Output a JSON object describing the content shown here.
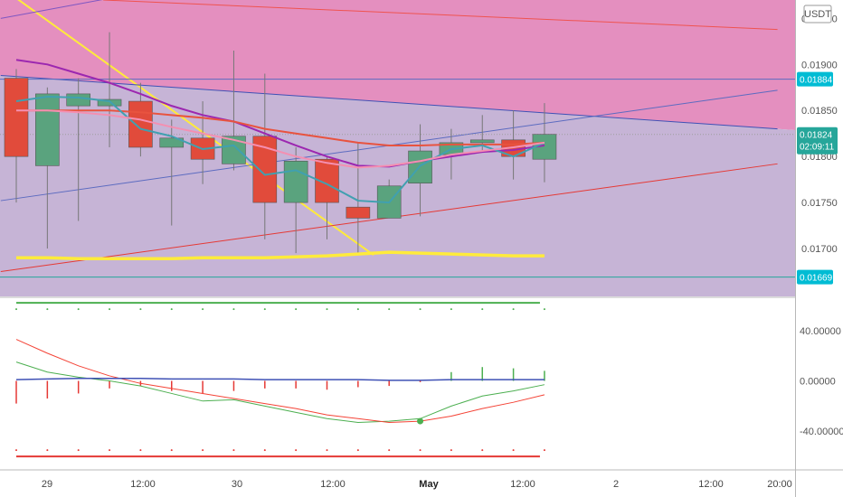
{
  "quote_currency": "USDT",
  "price_axis": {
    "ticks": [
      "0.01950",
      "0.01900",
      "0.01850",
      "0.01800",
      "0.01750",
      "0.01700"
    ],
    "ylim": [
      0.01648,
      0.0197
    ]
  },
  "oscillator_axis": {
    "ticks": [
      "40.00000",
      "0.00000",
      "-40.00000"
    ],
    "ylim": [
      -70,
      65
    ]
  },
  "time_axis": {
    "labels": [
      "29",
      "12:00",
      "30",
      "12:00",
      "May",
      "12:00",
      "2",
      "12:00",
      "20:00"
    ],
    "bold_label": "May"
  },
  "price_badges": {
    "upper_line": {
      "text": "0.01884",
      "color": "#00bcd4"
    },
    "last_price": {
      "text": "0.01824",
      "countdown": "02:09:11",
      "color": "#26a69a"
    },
    "lower_line": {
      "text": "0.01669",
      "color": "#00bcd4"
    }
  },
  "colors": {
    "up": "#5aa37e",
    "down": "#e14b3b",
    "wick": "#777777",
    "zone_upper": "#e48fbf",
    "zone_lower": "#c6b4d6"
  },
  "chart_data": [
    {
      "type": "candlestick",
      "x_unit": "candle index",
      "candles": [
        {
          "o": 0.01885,
          "h": 0.01895,
          "l": 0.0175,
          "c": 0.018
        },
        {
          "o": 0.0179,
          "h": 0.01875,
          "l": 0.017,
          "c": 0.01868
        },
        {
          "o": 0.01855,
          "h": 0.01885,
          "l": 0.0173,
          "c": 0.01868
        },
        {
          "o": 0.01855,
          "h": 0.01935,
          "l": 0.0181,
          "c": 0.01862
        },
        {
          "o": 0.0186,
          "h": 0.0188,
          "l": 0.018,
          "c": 0.0181
        },
        {
          "o": 0.0181,
          "h": 0.0184,
          "l": 0.01725,
          "c": 0.0182
        },
        {
          "o": 0.0182,
          "h": 0.0186,
          "l": 0.0177,
          "c": 0.01797
        },
        {
          "o": 0.01792,
          "h": 0.01915,
          "l": 0.01785,
          "c": 0.01822
        },
        {
          "o": 0.01822,
          "h": 0.0189,
          "l": 0.0171,
          "c": 0.0175
        },
        {
          "o": 0.0175,
          "h": 0.0181,
          "l": 0.01695,
          "c": 0.01795
        },
        {
          "o": 0.01797,
          "h": 0.018,
          "l": 0.0171,
          "c": 0.0175
        },
        {
          "o": 0.01745,
          "h": 0.01815,
          "l": 0.01693,
          "c": 0.01733
        },
        {
          "o": 0.01733,
          "h": 0.01775,
          "l": 0.01733,
          "c": 0.01768
        },
        {
          "o": 0.01771,
          "h": 0.01835,
          "l": 0.01735,
          "c": 0.01806
        },
        {
          "o": 0.01802,
          "h": 0.0183,
          "l": 0.01775,
          "c": 0.01815
        },
        {
          "o": 0.01815,
          "h": 0.01845,
          "l": 0.01805,
          "c": 0.01818
        },
        {
          "o": 0.01818,
          "h": 0.0185,
          "l": 0.01775,
          "c": 0.018
        },
        {
          "o": 0.01797,
          "h": 0.01858,
          "l": 0.01772,
          "c": 0.01824
        }
      ],
      "overlays": [
        {
          "color": "#9c27b0",
          "values": [
            0.01905,
            0.019,
            0.0189,
            0.0188,
            0.01868,
            0.01855,
            0.01845,
            0.01838,
            0.01825,
            0.01812,
            0.018,
            0.0179,
            0.01789,
            0.01795,
            0.018,
            0.01805,
            0.01807,
            0.01812
          ]
        },
        {
          "color": "#e8533f",
          "values": [
            0.0185,
            0.0185,
            0.0185,
            0.0185,
            0.01848,
            0.01845,
            0.01842,
            0.01838,
            0.0183,
            0.01825,
            0.0182,
            0.01815,
            0.01812,
            0.01812,
            0.01813,
            0.01813,
            0.01813,
            0.01815
          ]
        },
        {
          "color": "#40a0b0",
          "values": [
            0.0186,
            0.01865,
            0.01864,
            0.0186,
            0.0183,
            0.01822,
            0.01808,
            0.01812,
            0.0178,
            0.01785,
            0.0177,
            0.01752,
            0.0175,
            0.0179,
            0.01808,
            0.01812,
            0.018,
            0.01815
          ]
        },
        {
          "color": "#f48fb1",
          "values": [
            0.0185,
            0.0185,
            0.01848,
            0.01845,
            0.0184,
            0.01832,
            0.01825,
            0.01818,
            0.0181,
            0.018,
            0.01793,
            0.01788,
            0.0179,
            0.01795,
            0.01802,
            0.01806,
            0.0181,
            0.01815
          ]
        },
        {
          "color": "#ffeb3b",
          "values": [
            0.0169,
            0.0169,
            0.01689,
            0.01689,
            0.01689,
            0.01689,
            0.0169,
            0.0169,
            0.0169,
            0.01691,
            0.01692,
            0.01694,
            0.01696,
            0.01695,
            0.01694,
            0.01693,
            0.01692,
            0.01692
          ]
        }
      ],
      "trend_lines": [
        {
          "color": "#ffeb3b",
          "x": [
            0,
            11.5
          ],
          "y": [
            0.01972,
            0.01693
          ]
        },
        {
          "color": "#3f51b5",
          "x": [
            -0.5,
            24.5
          ],
          "y": [
            0.01888,
            0.0183
          ]
        },
        {
          "color": "#5c6bc0",
          "x": [
            -0.5,
            24.5
          ],
          "y": [
            0.01752,
            0.01872
          ]
        },
        {
          "color": "#e53935",
          "x": [
            -0.5,
            24.5
          ],
          "y": [
            0.01675,
            0.01792
          ]
        },
        {
          "color": "#ef5350",
          "x": [
            2.8,
            24.5
          ],
          "y": [
            0.0197,
            0.01938
          ]
        },
        {
          "color": "#7e57c2",
          "x": [
            -0.5,
            3.5
          ],
          "y": [
            0.0195,
            0.01975
          ]
        }
      ],
      "horizontal_lines": [
        {
          "color": "#5c6bc0",
          "y": 0.01884
        },
        {
          "color": "#26a69a",
          "y": 0.01669
        },
        {
          "color": "#9e9e9e",
          "y": 0.01824
        }
      ]
    },
    {
      "type": "line",
      "x_unit": "candle index",
      "series": [
        {
          "color": "#4caf50",
          "values": [
            15,
            7,
            3,
            0,
            -4,
            -10,
            -16,
            -15,
            -20,
            -25,
            -30,
            -33,
            -32,
            -30,
            -20,
            -12,
            -8,
            -3
          ]
        },
        {
          "color": "#f44336",
          "values": [
            33,
            22,
            12,
            4,
            -2,
            -6,
            -10,
            -14,
            -18,
            -22,
            -27,
            -30,
            -33,
            -32,
            -28,
            -22,
            -17,
            -11
          ]
        },
        {
          "color": "#3f51b5",
          "values": [
            1,
            1.5,
            2,
            2,
            2,
            1.5,
            1.5,
            1.5,
            1,
            1,
            1,
            1,
            0.5,
            0.5,
            1,
            1,
            1,
            1
          ]
        }
      ],
      "markers": {
        "upper_level": 62,
        "lower_level": -60,
        "dot": {
          "x": 13,
          "y": -32,
          "color": "#4caf50"
        }
      },
      "histogram": [
        -18,
        -14,
        -10,
        -6,
        -4,
        -8,
        -10,
        -8,
        -6,
        -6,
        -7,
        -5,
        -4,
        -1,
        7,
        11,
        10,
        8
      ]
    }
  ]
}
